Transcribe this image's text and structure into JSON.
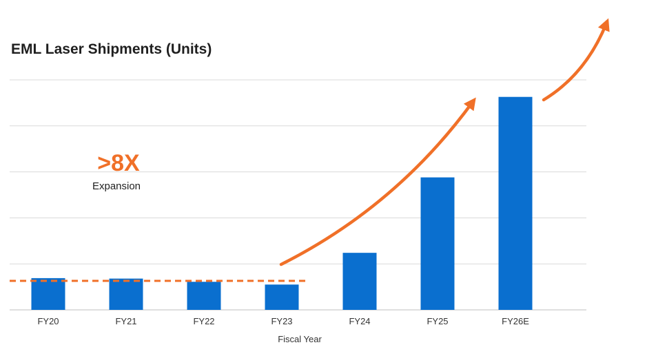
{
  "colors": {
    "bar": "#0a6fcf",
    "accent": "#f07028",
    "grid": "#d9d9d9",
    "text": "#333333"
  },
  "chart_data": {
    "type": "bar",
    "title": "EML Laser Shipments (Units)",
    "xlabel": "Fiscal Year",
    "ylabel": "",
    "categories": [
      "FY20",
      "FY21",
      "FY22",
      "FY23",
      "FY24",
      "FY25",
      "FY26E"
    ],
    "values": [
      0.69,
      0.68,
      0.61,
      0.55,
      1.24,
      2.88,
      4.63
    ],
    "ylim": [
      0,
      5
    ],
    "grid": true,
    "y_tick_labels_shown": false,
    "baseline": {
      "value": 0.63,
      "style": "dashed",
      "color": "#f07028",
      "span": [
        "FY20",
        "FY23"
      ]
    },
    "annotations": [
      {
        "text": ">8X",
        "color": "#f07028"
      },
      {
        "text": "Expansion",
        "color": "#1f1f1f"
      }
    ],
    "trend_arrows": 2
  }
}
